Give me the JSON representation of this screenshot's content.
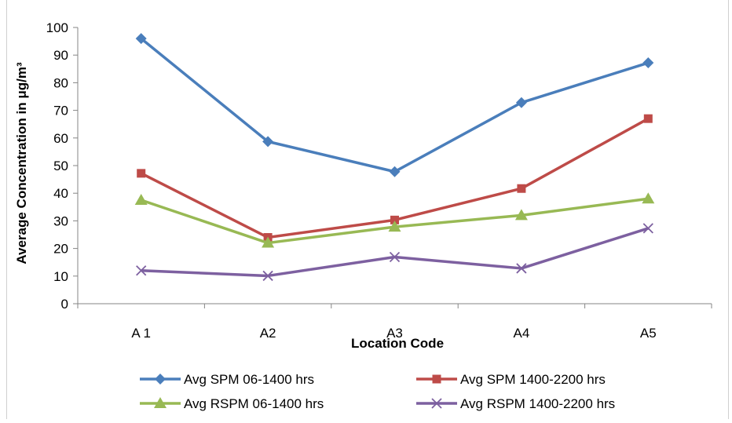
{
  "chart_data": {
    "type": "line",
    "categories": [
      "A 1",
      "A2",
      "A3",
      "A4",
      "A5"
    ],
    "series": [
      {
        "name": "Avg SPM 06-1400 hrs",
        "values": [
          96,
          58.7,
          47.8,
          72.8,
          87.2
        ],
        "color": "#4A7EBB",
        "marker": "diamond"
      },
      {
        "name": "Avg SPM 1400-2200 hrs",
        "values": [
          47.2,
          24,
          30.3,
          41.7,
          67
        ],
        "color": "#BE4B48",
        "marker": "square"
      },
      {
        "name": "Avg RSPM 06-1400 hrs",
        "values": [
          37.5,
          22,
          27.8,
          32,
          38
        ],
        "color": "#98B954",
        "marker": "triangle"
      },
      {
        "name": "Avg RSPM 1400-2200 hrs",
        "values": [
          12,
          10.1,
          16.9,
          12.8,
          27.3
        ],
        "color": "#7D60A0",
        "marker": "x"
      }
    ],
    "xlabel": "Location Code",
    "ylabel": "Average Concentration in μg/m³",
    "ylim": [
      0,
      100
    ],
    "yticks": [
      "0",
      "10",
      "20",
      "30",
      "40",
      "50",
      "60",
      "70",
      "80",
      "90",
      "100"
    ],
    "grid": false,
    "legend": "bottom"
  }
}
